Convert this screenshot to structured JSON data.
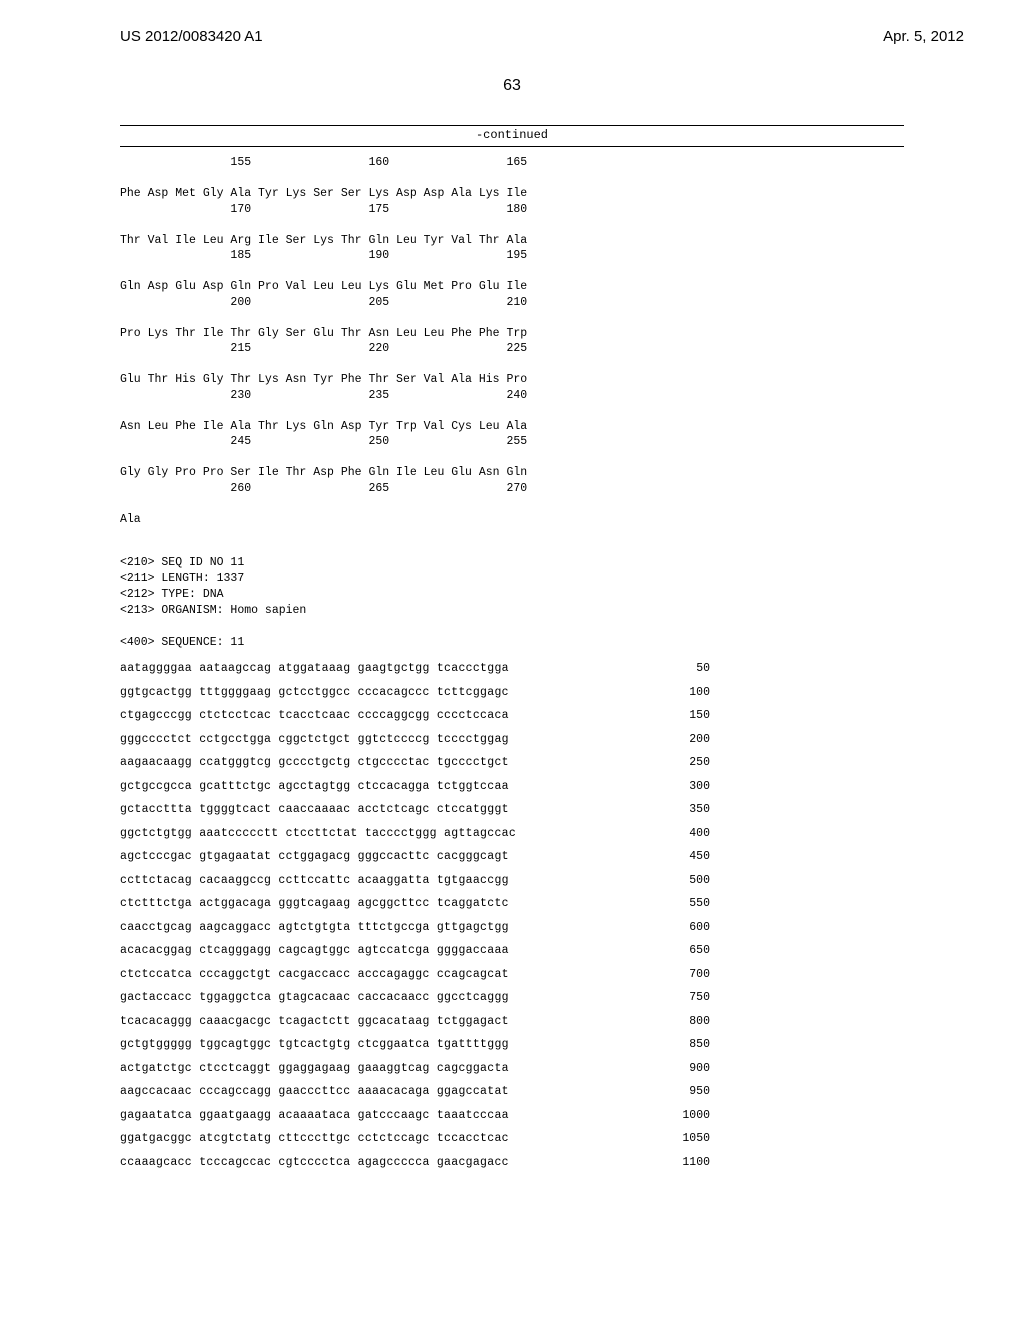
{
  "header": {
    "pub_number": "US 2012/0083420 A1",
    "pub_date": "Apr. 5, 2012",
    "page_num": "63"
  },
  "continued_label": "-continued",
  "protein_rows": [
    {
      "positions": "                155                 160                 165"
    },
    {
      "seq": "Phe Asp Met Gly Ala Tyr Lys Ser Ser Lys Asp Asp Ala Lys Ile",
      "positions": "                170                 175                 180"
    },
    {
      "seq": "Thr Val Ile Leu Arg Ile Ser Lys Thr Gln Leu Tyr Val Thr Ala",
      "positions": "                185                 190                 195"
    },
    {
      "seq": "Gln Asp Glu Asp Gln Pro Val Leu Leu Lys Glu Met Pro Glu Ile",
      "positions": "                200                 205                 210"
    },
    {
      "seq": "Pro Lys Thr Ile Thr Gly Ser Glu Thr Asn Leu Leu Phe Phe Trp",
      "positions": "                215                 220                 225"
    },
    {
      "seq": "Glu Thr His Gly Thr Lys Asn Tyr Phe Thr Ser Val Ala His Pro",
      "positions": "                230                 235                 240"
    },
    {
      "seq": "Asn Leu Phe Ile Ala Thr Lys Gln Asp Tyr Trp Val Cys Leu Ala",
      "positions": "                245                 250                 255"
    },
    {
      "seq": "Gly Gly Pro Pro Ser Ile Thr Asp Phe Gln Ile Leu Glu Asn Gln",
      "positions": "                260                 265                 270"
    },
    {
      "seq": "Ala",
      "positions": ""
    }
  ],
  "metadata": [
    "<210> SEQ ID NO 11",
    "<211> LENGTH: 1337",
    "<212> TYPE: DNA",
    "<213> ORGANISM: Homo sapien",
    "",
    "<400> SEQUENCE: 11"
  ],
  "dna_rows": [
    {
      "seq": "aataggggaa aataagccag atggataaag gaagtgctgg tcaccctgga",
      "pos": "50"
    },
    {
      "seq": "ggtgcactgg tttggggaag gctcctggcc cccacagccc tcttcggagc",
      "pos": "100"
    },
    {
      "seq": "ctgagcccgg ctctcctcac tcacctcaac ccccaggcgg cccctccaca",
      "pos": "150"
    },
    {
      "seq": "gggcccctct cctgcctgga cggctctgct ggtctccccg tcccctggag",
      "pos": "200"
    },
    {
      "seq": "aagaacaagg ccatgggtcg gcccctgctg ctgcccctac tgcccctgct",
      "pos": "250"
    },
    {
      "seq": "gctgccgcca gcatttctgc agcctagtgg ctccacagga tctggtccaa",
      "pos": "300"
    },
    {
      "seq": "gctaccttta tggggtcact caaccaaaac acctctcagc ctccatgggt",
      "pos": "350"
    },
    {
      "seq": "ggctctgtgg aaatccccctt ctccttctat tacccctggg agttagccac",
      "pos": "400"
    },
    {
      "seq": "agctcccgac gtgagaatat cctggagacg gggccacttc cacgggcagt",
      "pos": "450"
    },
    {
      "seq": "ccttctacag cacaaggccg ccttccattc acaaggatta tgtgaaccgg",
      "pos": "500"
    },
    {
      "seq": "ctctttctga actggacaga gggtcagaag agcggcttcc tcaggatctc",
      "pos": "550"
    },
    {
      "seq": "caacctgcag aagcaggacc agtctgtgta tttctgccga gttgagctgg",
      "pos": "600"
    },
    {
      "seq": "acacacggag ctcagggagg cagcagtggc agtccatcga ggggaccaaa",
      "pos": "650"
    },
    {
      "seq": "ctctccatca cccaggctgt cacgaccacc acccagaggc ccagcagcat",
      "pos": "700"
    },
    {
      "seq": "gactaccacc tggaggctca gtagcacaac caccacaacc ggcctcaggg",
      "pos": "750"
    },
    {
      "seq": "tcacacaggg caaacgacgc tcagactctt ggcacataag tctggagact",
      "pos": "800"
    },
    {
      "seq": "gctgtggggg tggcagtggc tgtcactgtg ctcggaatca tgattttggg",
      "pos": "850"
    },
    {
      "seq": "actgatctgc ctcctcaggt ggaggagaag gaaaggtcag cagcggacta",
      "pos": "900"
    },
    {
      "seq": "aagccacaac cccagccagg gaacccttcc aaaacacaga ggagccatat",
      "pos": "950"
    },
    {
      "seq": "gagaatatca ggaatgaagg acaaaataca gatcccaagc taaatcccaa",
      "pos": "1000"
    },
    {
      "seq": "ggatgacggc atcgtctatg cttcccttgc cctctccagc tccacctcac",
      "pos": "1050"
    },
    {
      "seq": "ccaaagcacc tcccagccac cgtcccctca agagccccca gaacgagacc",
      "pos": "1100"
    }
  ]
}
